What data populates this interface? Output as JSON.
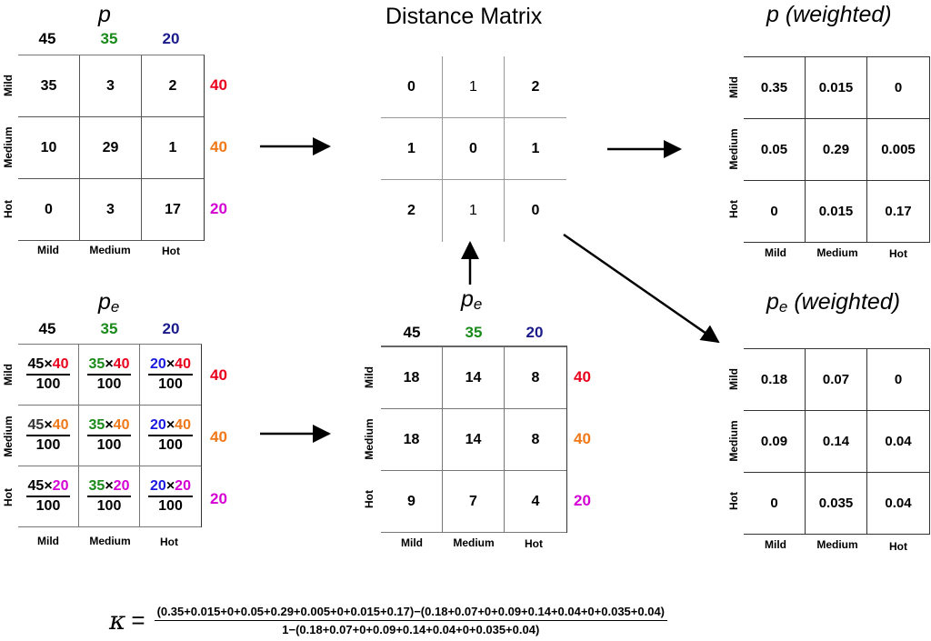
{
  "colors": {
    "black": "#000000",
    "green": "#1a8a1a",
    "navy": "#1a1a8a",
    "red": "#e8001c",
    "orange": "#f07818",
    "magenta": "#d400d4",
    "blue": "#1a1ae0",
    "darkgray": "#333333"
  },
  "labels": {
    "cols": [
      "Mild",
      "Medium",
      "Hot"
    ],
    "rows": [
      "Mild",
      "Medium",
      "Hot"
    ]
  },
  "p": {
    "title": "p",
    "col_totals": [
      "45",
      "35",
      "20"
    ],
    "row_totals": [
      "40",
      "40",
      "20"
    ],
    "cells": [
      [
        "35",
        "3",
        "2"
      ],
      [
        "10",
        "29",
        "1"
      ],
      [
        "0",
        "3",
        "17"
      ]
    ]
  },
  "distance": {
    "title": "Distance Matrix",
    "cells": [
      [
        "0",
        "1",
        "2"
      ],
      [
        "1",
        "0",
        "1"
      ],
      [
        "2",
        "1",
        "0"
      ]
    ]
  },
  "p_weighted": {
    "title": "p (weighted)",
    "cells": [
      [
        "0.35",
        "0.015",
        "0"
      ],
      [
        "0.05",
        "0.29",
        "0.005"
      ],
      [
        "0",
        "0.015",
        "0.17"
      ]
    ]
  },
  "pe_fraction": {
    "title_main": "p",
    "title_sub": "e",
    "col_totals": [
      "45",
      "35",
      "20"
    ],
    "row_totals": [
      "40",
      "40",
      "20"
    ],
    "times": "×",
    "denominator": "100"
  },
  "pe": {
    "title_main": "p",
    "title_sub": "e",
    "col_totals": [
      "45",
      "35",
      "20"
    ],
    "row_totals": [
      "40",
      "40",
      "20"
    ],
    "cells": [
      [
        "18",
        "14",
        "8"
      ],
      [
        "18",
        "14",
        "8"
      ],
      [
        "9",
        "7",
        "4"
      ]
    ]
  },
  "pe_weighted": {
    "title_main": "p",
    "title_sub": "e",
    "title_suffix": " (weighted)",
    "cells": [
      [
        "0.18",
        "0.07",
        "0"
      ],
      [
        "0.09",
        "0.14",
        "0.04"
      ],
      [
        "0",
        "0.035",
        "0.04"
      ]
    ]
  },
  "kappa": {
    "symbol": "κ",
    "equals": "=",
    "numerator": "(0.35+0.015+0+0.05+0.29+0.005+0+0.015+0.17)−(0.18+0.07+0+0.09+0.14+0.04+0+0.035+0.04)",
    "denominator": "1−(0.18+0.07+0+0.09+0.14+0.04+0+0.035+0.04)"
  }
}
